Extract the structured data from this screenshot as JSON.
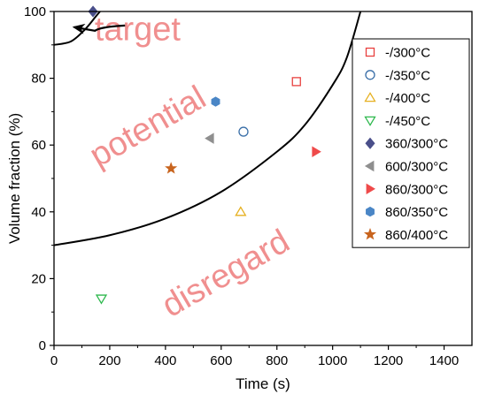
{
  "chart_data": {
    "type": "scatter",
    "title": "",
    "xlabel": "Time (s)",
    "ylabel": "Volume fraction (%)",
    "xlim": [
      0,
      1500
    ],
    "ylim": [
      0,
      100
    ],
    "xticks": [
      0,
      200,
      400,
      600,
      800,
      1000,
      1200,
      1400
    ],
    "yticks": [
      0,
      20,
      40,
      60,
      80,
      100
    ],
    "grid": false,
    "legend_position": "right",
    "series": [
      {
        "name": "-/300°C",
        "marker": "square-open",
        "color": "#e8413f",
        "points": [
          {
            "x": 870,
            "y": 79
          }
        ]
      },
      {
        "name": "-/350°C",
        "marker": "circle-open",
        "color": "#3a6fa8",
        "points": [
          {
            "x": 680,
            "y": 64
          }
        ]
      },
      {
        "name": "-/400°C",
        "marker": "triangle-up-open",
        "color": "#e6b020",
        "points": [
          {
            "x": 670,
            "y": 40
          }
        ]
      },
      {
        "name": "-/450°C",
        "marker": "triangle-down-open",
        "color": "#2db84d",
        "points": [
          {
            "x": 170,
            "y": 14
          }
        ]
      },
      {
        "name": "360/300°C",
        "marker": "diamond",
        "color": "#4a4f8a",
        "points": [
          {
            "x": 140,
            "y": 100
          }
        ]
      },
      {
        "name": "600/300°C",
        "marker": "triangle-left",
        "color": "#8f8f8f",
        "points": [
          {
            "x": 560,
            "y": 62
          }
        ]
      },
      {
        "name": "860/300°C",
        "marker": "triangle-right",
        "color": "#ef4a4a",
        "points": [
          {
            "x": 940,
            "y": 58
          }
        ]
      },
      {
        "name": "860/350°C",
        "marker": "hexagon",
        "color": "#4a86c6",
        "points": [
          {
            "x": 580,
            "y": 73
          }
        ]
      },
      {
        "name": "860/400°C",
        "marker": "star",
        "color": "#c8641e",
        "points": [
          {
            "x": 420,
            "y": 53
          }
        ]
      }
    ],
    "curves": [
      {
        "points": [
          [
            0,
            30
          ],
          [
            200,
            33
          ],
          [
            400,
            38
          ],
          [
            600,
            46
          ],
          [
            800,
            58
          ],
          [
            900,
            66
          ],
          [
            1000,
            78
          ],
          [
            1050,
            86
          ],
          [
            1100,
            100
          ]
        ]
      },
      {
        "points": [
          [
            0,
            90
          ],
          [
            60,
            91
          ],
          [
            110,
            94.5
          ],
          [
            150,
            98.5
          ],
          [
            165,
            100
          ]
        ]
      }
    ],
    "annotations": [
      {
        "text": "target",
        "x": 300,
        "y": 94,
        "rotate": 0
      },
      {
        "text": "potential",
        "x": 340,
        "y": 65,
        "rotate": -30
      },
      {
        "text": "disregard",
        "x": 620,
        "y": 21,
        "rotate": -30
      }
    ],
    "arrow": {
      "from": {
        "x": 255,
        "y": 95.8
      },
      "to": {
        "x": 72,
        "y": 95.3
      }
    }
  }
}
